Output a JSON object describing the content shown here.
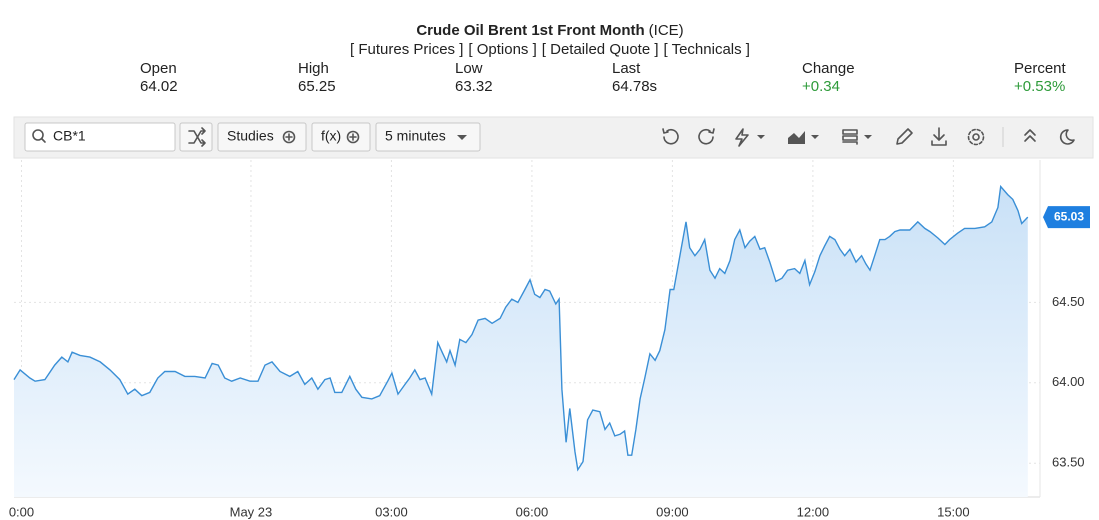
{
  "header": {
    "title": "Crude Oil Brent 1st Front Month",
    "exchange": "(ICE)",
    "links": [
      "[ Futures Prices ]",
      "[ Options ]",
      "[ Detailed Quote ]",
      "[ Technicals ]"
    ]
  },
  "quotes": [
    {
      "label": "Open",
      "value": "64.02"
    },
    {
      "label": "High",
      "value": "65.25"
    },
    {
      "label": "Low",
      "value": "63.32"
    },
    {
      "label": "Last",
      "value": "64.78s"
    },
    {
      "label": "Change",
      "value": "+0.34",
      "color": "#2e9b3a"
    },
    {
      "label": "Percent",
      "value": "+0.53%",
      "color": "#2e9b3a"
    }
  ],
  "toolbar": {
    "symbol": "CB*1",
    "buttons": [
      "Studies",
      "f(x)",
      "5 minutes"
    ]
  },
  "chart_data": {
    "type": "line",
    "color": "#3a8fd6",
    "x": [
      -5.06,
      -4.93,
      -4.72,
      -4.61,
      -4.4,
      -4.19,
      -4.04,
      -3.91,
      -3.82,
      -3.65,
      -3.44,
      -3.22,
      -3.01,
      -2.8,
      -2.63,
      -2.48,
      -2.33,
      -2.16,
      -1.99,
      -1.84,
      -1.62,
      -1.41,
      -1.2,
      -0.98,
      -0.83,
      -0.7,
      -0.56,
      -0.41,
      -0.23,
      -0.02,
      0.15,
      0.3,
      0.45,
      0.62,
      0.83,
      1.0,
      1.15,
      1.3,
      1.43,
      1.58,
      1.69,
      1.79,
      1.94,
      2.11,
      2.24,
      2.37,
      2.58,
      2.75,
      2.92,
      3.01,
      3.14,
      3.29,
      3.39,
      3.5,
      3.61,
      3.72,
      3.86,
      3.99,
      4.1,
      4.18,
      4.25,
      4.36,
      4.46,
      4.59,
      4.72,
      4.85,
      5.0,
      5.15,
      5.32,
      5.44,
      5.57,
      5.7,
      5.85,
      5.96,
      6.06,
      6.17,
      6.28,
      6.38,
      6.51,
      6.58,
      6.64,
      6.73,
      6.81,
      6.92,
      6.98,
      7.09,
      7.19,
      7.3,
      7.45,
      7.56,
      7.66,
      7.77,
      7.88,
      7.98,
      8.05,
      8.13,
      8.22,
      8.31,
      8.41,
      8.52,
      8.63,
      8.73,
      8.84,
      8.95,
      9.03,
      9.16,
      9.29,
      9.37,
      9.48,
      9.59,
      9.69,
      9.8,
      9.91,
      10.01,
      10.12,
      10.23,
      10.33,
      10.44,
      10.55,
      10.65,
      10.76,
      10.87,
      10.97,
      11.08,
      11.21,
      11.34,
      11.46,
      11.61,
      11.72,
      11.83,
      11.93,
      12.04,
      12.15,
      12.25,
      12.36,
      12.47,
      12.58,
      12.68,
      12.79,
      12.92,
      13.04,
      13.13,
      13.22,
      13.32,
      13.43,
      13.54,
      13.64,
      13.75,
      13.86,
      14.07,
      14.24,
      14.39,
      14.5,
      14.67,
      14.82,
      14.92,
      15.09,
      15.24,
      15.46,
      15.67,
      15.82,
      15.95,
      16.01,
      16.16,
      16.27,
      16.38,
      16.46,
      16.59
    ],
    "values": [
      64.02,
      64.08,
      64.03,
      64.01,
      64.02,
      64.11,
      64.16,
      64.13,
      64.19,
      64.17,
      64.16,
      64.13,
      64.08,
      64.02,
      63.93,
      63.96,
      63.92,
      63.94,
      64.03,
      64.07,
      64.07,
      64.04,
      64.04,
      64.03,
      64.12,
      64.11,
      64.03,
      64.01,
      64.03,
      64.01,
      64.01,
      64.11,
      64.13,
      64.07,
      64.04,
      64.07,
      63.99,
      64.03,
      63.96,
      64.02,
      64.03,
      63.94,
      63.94,
      64.04,
      63.96,
      63.91,
      63.9,
      63.92,
      64.01,
      64.06,
      63.93,
      63.99,
      64.03,
      64.08,
      64.02,
      64.03,
      63.93,
      64.25,
      64.18,
      64.13,
      64.2,
      64.11,
      64.27,
      64.25,
      64.3,
      64.39,
      64.4,
      64.37,
      64.4,
      64.47,
      64.52,
      64.5,
      64.58,
      64.64,
      64.55,
      64.53,
      64.58,
      64.57,
      64.49,
      64.52,
      63.96,
      63.63,
      63.84,
      63.57,
      63.46,
      63.51,
      63.77,
      63.83,
      63.82,
      63.71,
      63.75,
      63.67,
      63.68,
      63.7,
      63.55,
      63.55,
      63.71,
      63.9,
      64.03,
      64.18,
      64.14,
      64.2,
      64.33,
      64.58,
      64.58,
      64.79,
      65.0,
      64.84,
      64.79,
      64.83,
      64.89,
      64.7,
      64.65,
      64.71,
      64.68,
      64.76,
      64.89,
      64.95,
      64.84,
      64.88,
      64.91,
      64.83,
      64.84,
      64.75,
      64.63,
      64.65,
      64.7,
      64.71,
      64.68,
      64.76,
      64.61,
      64.69,
      64.79,
      64.85,
      64.91,
      64.89,
      64.83,
      64.79,
      64.83,
      64.75,
      64.79,
      64.74,
      64.7,
      64.79,
      64.89,
      64.89,
      64.91,
      64.94,
      64.95,
      64.95,
      65.0,
      64.96,
      64.94,
      64.9,
      64.86,
      64.89,
      64.93,
      64.96,
      64.96,
      64.97,
      65.0,
      65.09,
      65.22,
      65.17,
      65.14,
      65.07,
      64.99,
      65.03
    ],
    "xlim": [
      -5.06,
      16.85
    ],
    "ylim": [
      63.29,
      65.385
    ],
    "xticks": [
      {
        "value": -4.9,
        "label": "0:00"
      },
      {
        "value": 0,
        "label": "May 23"
      },
      {
        "value": 3,
        "label": "03:00"
      },
      {
        "value": 6,
        "label": "06:00"
      },
      {
        "value": 9,
        "label": "09:00"
      },
      {
        "value": 12,
        "label": "12:00"
      },
      {
        "value": 15,
        "label": "15:00"
      }
    ],
    "yticks": [
      {
        "value": 63.5,
        "label": "63.50"
      },
      {
        "value": 64,
        "label": "64.00"
      },
      {
        "value": 64.5,
        "label": "64.50"
      }
    ],
    "grid": true,
    "last_value": 65.03
  }
}
